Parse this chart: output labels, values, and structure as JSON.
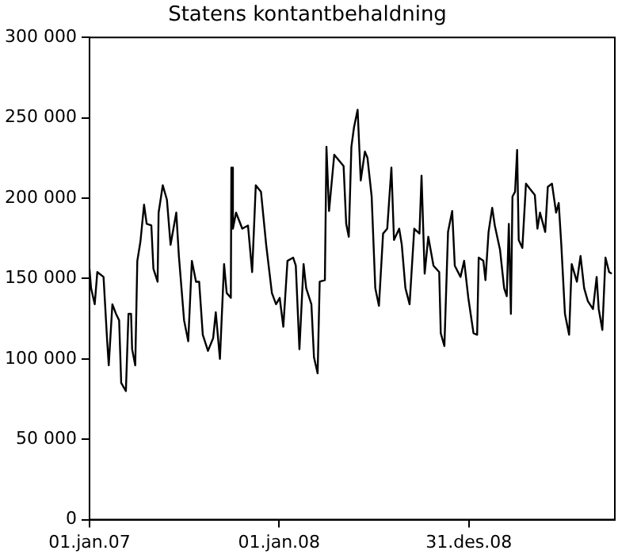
{
  "chart_data": {
    "type": "line",
    "title": "Statens kontantbehaldning",
    "x": [
      "2007-01-01",
      "2007-01-04",
      "2007-01-11",
      "2007-01-16",
      "2007-01-28",
      "2007-02-04",
      "2007-02-07",
      "2007-02-14",
      "2007-02-21",
      "2007-02-27",
      "2007-03-03",
      "2007-03-12",
      "2007-03-17",
      "2007-03-22",
      "2007-03-24",
      "2007-03-30",
      "2007-04-03",
      "2007-04-09",
      "2007-04-16",
      "2007-04-21",
      "2007-04-30",
      "2007-05-04",
      "2007-05-12",
      "2007-05-14",
      "2007-05-22",
      "2007-05-30",
      "2007-06-06",
      "2007-06-17",
      "2007-06-22",
      "2007-07-02",
      "2007-07-10",
      "2007-07-17",
      "2007-07-25",
      "2007-07-31",
      "2007-08-07",
      "2007-08-17",
      "2007-08-27",
      "2007-09-01",
      "2007-09-09",
      "2007-09-17",
      "2007-09-22",
      "2007-09-30",
      "2007-10-01",
      "2007-10-04",
      "2007-10-10",
      "2007-10-22",
      "2007-11-02",
      "2007-11-10",
      "2007-11-17",
      "2007-11-27",
      "2007-12-07",
      "2007-12-18",
      "2007-12-26",
      "2008-01-02",
      "2008-01-09",
      "2008-01-17",
      "2008-01-28",
      "2008-02-02",
      "2008-02-09",
      "2008-02-17",
      "2008-02-22",
      "2008-03-03",
      "2008-03-08",
      "2008-03-15",
      "2008-03-19",
      "2008-03-29",
      "2008-04-01",
      "2008-04-06",
      "2008-04-16",
      "2008-05-04",
      "2008-05-09",
      "2008-05-14",
      "2008-05-19",
      "2008-05-24",
      "2008-05-31",
      "2008-06-06",
      "2008-06-14",
      "2008-06-19",
      "2008-06-27",
      "2008-07-04",
      "2008-07-11",
      "2008-07-19",
      "2008-07-27",
      "2008-08-04",
      "2008-08-09",
      "2008-08-19",
      "2008-08-24",
      "2008-08-31",
      "2008-09-08",
      "2008-09-17",
      "2008-09-27",
      "2008-10-01",
      "2008-10-07",
      "2008-10-14",
      "2008-10-24",
      "2008-11-04",
      "2008-11-07",
      "2008-11-14",
      "2008-11-21",
      "2008-11-29",
      "2008-12-04",
      "2008-12-15",
      "2008-12-22",
      "2008-12-30",
      "2009-01-09",
      "2009-01-16",
      "2009-01-19",
      "2009-01-28",
      "2009-02-01",
      "2009-02-07",
      "2009-02-14",
      "2009-02-19",
      "2009-03-01",
      "2009-03-09",
      "2009-03-14",
      "2009-03-18",
      "2009-03-22",
      "2009-03-25",
      "2009-03-30",
      "2009-04-03",
      "2009-04-06",
      "2009-04-13",
      "2009-04-20",
      "2009-04-27",
      "2009-05-07",
      "2009-05-12",
      "2009-05-17",
      "2009-05-27",
      "2009-06-01",
      "2009-06-09",
      "2009-06-17",
      "2009-06-22",
      "2009-06-27",
      "2009-07-04",
      "2009-07-12",
      "2009-07-17",
      "2009-07-27",
      "2009-08-03",
      "2009-08-10",
      "2009-08-17",
      "2009-08-27",
      "2009-09-03",
      "2009-09-07",
      "2009-09-14",
      "2009-09-20",
      "2009-09-27",
      "2009-10-02"
    ],
    "series": [
      {
        "color": "#000000",
        "values": [
          156000,
          144000,
          134000,
          154000,
          151000,
          111000,
          96000,
          134000,
          128000,
          124000,
          85000,
          80000,
          128000,
          128000,
          106000,
          96000,
          161000,
          173000,
          196000,
          184000,
          183000,
          156000,
          148000,
          191000,
          208000,
          199000,
          171000,
          191000,
          164000,
          124000,
          111000,
          161000,
          148000,
          148000,
          115000,
          105000,
          113000,
          129000,
          100000,
          159000,
          141000,
          138000,
          219000,
          181000,
          191000,
          181000,
          183000,
          154000,
          208000,
          204000,
          171000,
          141000,
          134000,
          138000,
          120000,
          161000,
          163000,
          158000,
          106000,
          159000,
          144000,
          134000,
          101000,
          91000,
          148000,
          149000,
          232000,
          192000,
          227000,
          220000,
          184000,
          176000,
          232000,
          244000,
          255000,
          211000,
          229000,
          225000,
          201000,
          144000,
          133000,
          178000,
          181000,
          219000,
          174000,
          181000,
          171000,
          144000,
          134000,
          181000,
          178000,
          214000,
          153000,
          176000,
          158000,
          154000,
          116000,
          108000,
          179000,
          192000,
          158000,
          151000,
          161000,
          138000,
          116000,
          115000,
          163000,
          161000,
          149000,
          179000,
          194000,
          183000,
          168000,
          144000,
          139000,
          184000,
          128000,
          201000,
          204000,
          230000,
          174000,
          169000,
          209000,
          206000,
          202000,
          181000,
          191000,
          179000,
          207000,
          209000,
          191000,
          197000,
          171000,
          128000,
          115000,
          159000,
          148000,
          164000,
          144000,
          136000,
          131000,
          151000,
          131000,
          118000,
          163000,
          154000,
          153000
        ]
      }
    ],
    "xlim": [
      "2007-01-01",
      "2009-10-08"
    ],
    "xticks": [
      {
        "value": "2007-01-01",
        "label": "01.jan.07"
      },
      {
        "value": "2008-01-01",
        "label": "01.jan.08"
      },
      {
        "value": "2008-12-31",
        "label": "31.des.08"
      }
    ],
    "ylim": [
      0,
      300000
    ],
    "yticks": [
      0,
      {
        "value": 50000,
        "label": "50 000"
      },
      {
        "value": 100000,
        "label": "100 000"
      },
      {
        "value": 150000,
        "label": "150 000"
      },
      {
        "value": 200000,
        "label": "200 000"
      },
      {
        "value": 250000,
        "label": "250 000"
      },
      {
        "value": 300000,
        "label": "300 000"
      }
    ],
    "grid": false,
    "legend": false,
    "marker": "none",
    "line_style": "solid"
  }
}
